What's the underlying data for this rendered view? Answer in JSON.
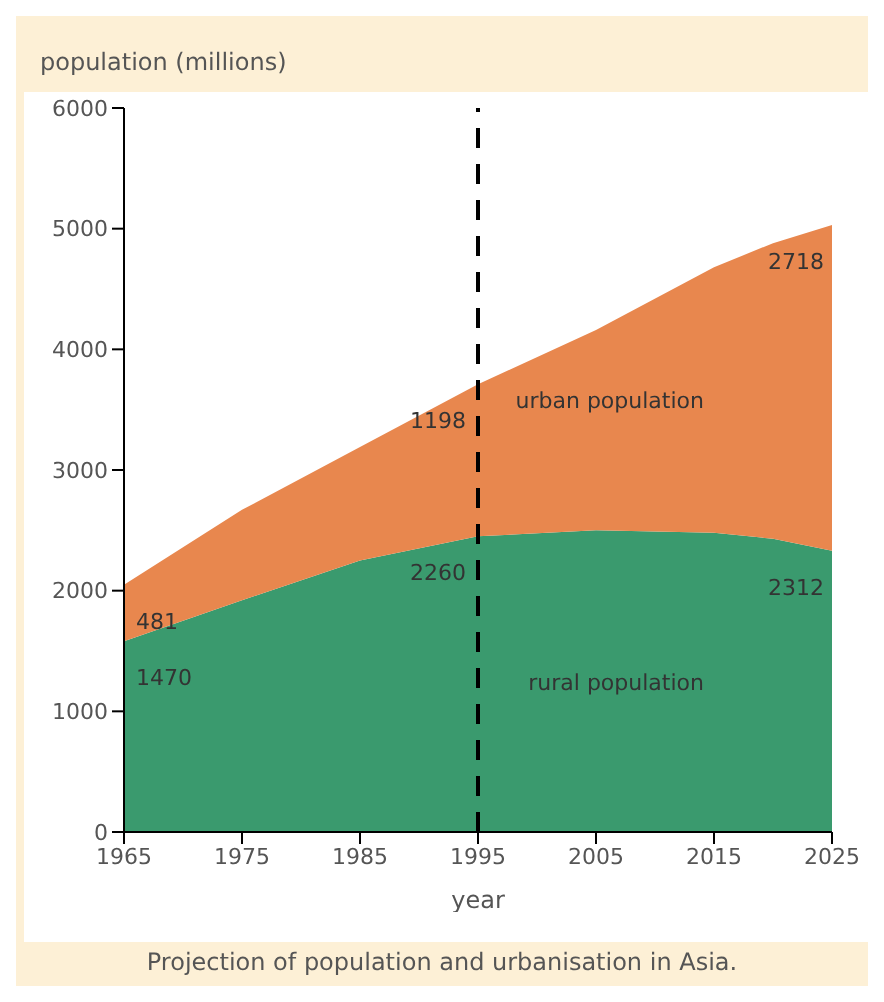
{
  "chart_data": {
    "type": "area",
    "stacked": true,
    "title": "Projection of population and urbanisation in Asia.",
    "xlabel": "year",
    "ylabel": "population (millions)",
    "x": [
      1965,
      1975,
      1985,
      1995,
      2005,
      2015,
      2020,
      2025
    ],
    "series": [
      {
        "name": "rural population",
        "color": "#3a9a6e",
        "values": [
          1580,
          1920,
          2250,
          2450,
          2500,
          2480,
          2430,
          2330
        ]
      },
      {
        "name": "urban population",
        "color": "#e8874e",
        "values": [
          470,
          750,
          940,
          1260,
          1660,
          2200,
          2450,
          2700
        ]
      }
    ],
    "xlim": [
      1965,
      2025
    ],
    "xticks": [
      1965,
      1975,
      1985,
      1995,
      2005,
      2015,
      2025
    ],
    "ylim": [
      0,
      6000
    ],
    "yticks": [
      0,
      1000,
      2000,
      3000,
      4000,
      5000,
      6000
    ],
    "ref_lines": [
      {
        "axis": "x",
        "value": 1995,
        "line_style": "dashed",
        "color": "#000000"
      }
    ],
    "annotations": [
      {
        "text": "481",
        "x": 1965,
        "y": 2050
      },
      {
        "text": "1470",
        "x": 1965,
        "y": 1580
      },
      {
        "text": "1198",
        "x": 1995,
        "y": 3710
      },
      {
        "text": "2260",
        "x": 1995,
        "y": 2450
      },
      {
        "text": "2718",
        "x": 2025,
        "y": 5030
      },
      {
        "text": "2312",
        "x": 2025,
        "y": 2330
      }
    ]
  }
}
